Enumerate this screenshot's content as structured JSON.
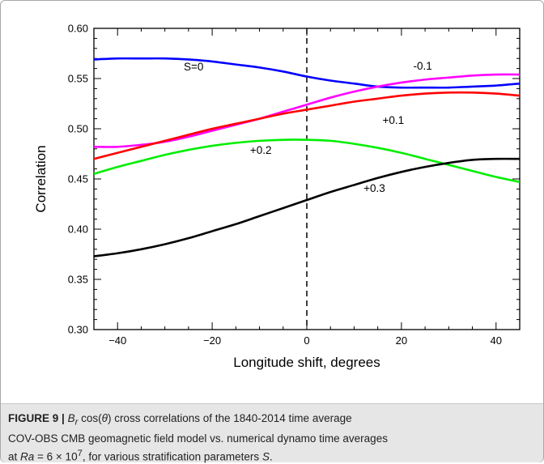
{
  "chart_data": {
    "type": "line",
    "xlabel": "Longitude shift, degrees",
    "ylabel": "Correlation",
    "xlim": [
      -45,
      45
    ],
    "ylim": [
      0.3,
      0.6
    ],
    "x_ticks": [
      -40,
      -20,
      0,
      20,
      40
    ],
    "y_ticks": [
      0.3,
      0.35,
      0.4,
      0.45,
      0.5,
      0.55,
      0.6
    ],
    "x_tick_labels": [
      "−40",
      "−20",
      "0",
      "20",
      "40"
    ],
    "y_tick_labels": [
      "0.30",
      "0.35",
      "0.40",
      "0.45",
      "0.50",
      "0.55",
      "0.60"
    ],
    "grid": false,
    "reference_line": {
      "x": 0,
      "style": "dashed",
      "color": "#000000"
    },
    "series": [
      {
        "name": "S=0",
        "color": "#0000ff",
        "x": [
          -45,
          -40,
          -35,
          -30,
          -25,
          -20,
          -15,
          -10,
          -5,
          0,
          5,
          10,
          15,
          20,
          25,
          30,
          35,
          40,
          45
        ],
        "y": [
          0.569,
          0.57,
          0.57,
          0.57,
          0.569,
          0.567,
          0.564,
          0.561,
          0.557,
          0.552,
          0.548,
          0.545,
          0.542,
          0.541,
          0.541,
          0.541,
          0.542,
          0.543,
          0.545
        ]
      },
      {
        "name": "-0.1",
        "color": "#ff00ff",
        "x": [
          -45,
          -40,
          -35,
          -30,
          -25,
          -20,
          -15,
          -10,
          -5,
          0,
          5,
          10,
          15,
          20,
          25,
          30,
          35,
          40,
          45
        ],
        "y": [
          0.482,
          0.482,
          0.484,
          0.487,
          0.492,
          0.498,
          0.504,
          0.51,
          0.517,
          0.524,
          0.531,
          0.537,
          0.542,
          0.546,
          0.549,
          0.551,
          0.553,
          0.554,
          0.554
        ]
      },
      {
        "name": "+0.1",
        "color": "#ff0000",
        "x": [
          -45,
          -40,
          -35,
          -30,
          -25,
          -20,
          -15,
          -10,
          -5,
          0,
          5,
          10,
          15,
          20,
          25,
          30,
          35,
          40,
          45
        ],
        "y": [
          0.47,
          0.476,
          0.482,
          0.488,
          0.494,
          0.5,
          0.505,
          0.51,
          0.515,
          0.519,
          0.523,
          0.527,
          0.53,
          0.533,
          0.535,
          0.536,
          0.536,
          0.535,
          0.533
        ]
      },
      {
        "name": "+0.2",
        "color": "#00ee00",
        "x": [
          -45,
          -40,
          -35,
          -30,
          -25,
          -20,
          -15,
          -10,
          -5,
          0,
          5,
          10,
          15,
          20,
          25,
          30,
          35,
          40,
          45
        ],
        "y": [
          0.455,
          0.462,
          0.468,
          0.474,
          0.479,
          0.483,
          0.486,
          0.488,
          0.489,
          0.489,
          0.488,
          0.485,
          0.481,
          0.476,
          0.47,
          0.464,
          0.458,
          0.452,
          0.447
        ]
      },
      {
        "name": "+0.3",
        "color": "#000000",
        "x": [
          -45,
          -40,
          -35,
          -30,
          -25,
          -20,
          -15,
          -10,
          -5,
          0,
          5,
          10,
          15,
          20,
          25,
          30,
          35,
          40,
          45
        ],
        "y": [
          0.373,
          0.376,
          0.38,
          0.385,
          0.391,
          0.398,
          0.405,
          0.413,
          0.421,
          0.429,
          0.437,
          0.444,
          0.451,
          0.457,
          0.462,
          0.466,
          0.469,
          0.47,
          0.47
        ]
      }
    ],
    "annotations": [
      "S=0",
      "-0.1",
      "+0.1",
      "+0.2",
      "+0.3"
    ]
  },
  "caption": {
    "figure_label": "FIGURE 9 |",
    "br": "B",
    "br_sub": "r",
    "cos_text": "cos(",
    "theta": "θ",
    "cos_close": ")",
    "text_1": " cross correlations of the 1840-2014 time average",
    "text_2": "COV-OBS CMB geomagnetic field model vs. numerical dynamo time averages",
    "text_3a": "at ",
    "ra": "Ra",
    "eq": " = 6 × 10",
    "exp": "7",
    "text_3b": ", for various stratification parameters ",
    "s_sym": "S",
    "text_3c": "."
  }
}
